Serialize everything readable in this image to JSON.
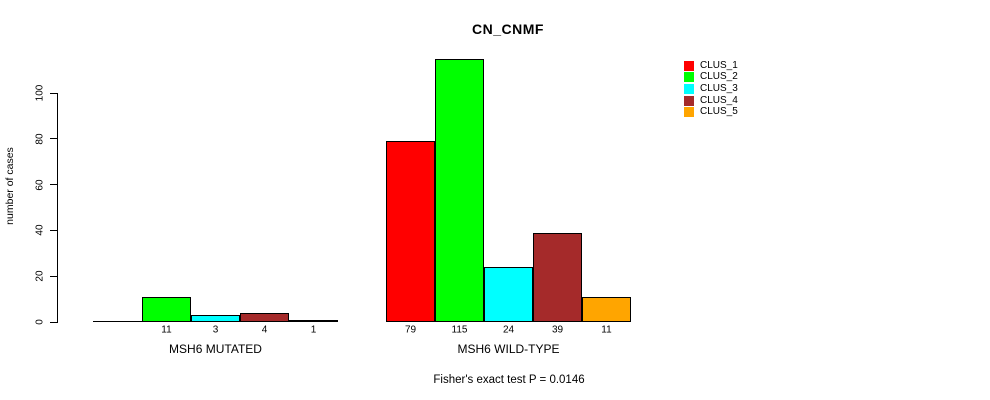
{
  "chart_data": {
    "type": "bar",
    "title": "CN_CNMF",
    "ylabel": "number of cases",
    "xlabel": "",
    "annotation": "Fisher's exact test P = 0.0146",
    "categories": [
      "MSH6 MUTATED",
      "MSH6 WILD-TYPE"
    ],
    "series": [
      {
        "name": "CLUS_1",
        "color": "#ff0000",
        "values": [
          0,
          79
        ],
        "bar_labels": [
          "",
          "79"
        ]
      },
      {
        "name": "CLUS_2",
        "color": "#00ff00",
        "values": [
          11,
          115
        ],
        "bar_labels": [
          "11",
          "115"
        ]
      },
      {
        "name": "CLUS_3",
        "color": "#00ffff",
        "values": [
          3,
          24
        ],
        "bar_labels": [
          "3",
          "24"
        ]
      },
      {
        "name": "CLUS_4",
        "color": "#a52a2a",
        "values": [
          4,
          39
        ],
        "bar_labels": [
          "4",
          "39"
        ]
      },
      {
        "name": "CLUS_5",
        "color": "#ffa500",
        "values": [
          1,
          11
        ],
        "bar_labels": [
          "1",
          "11"
        ]
      }
    ],
    "y_ticks": [
      0,
      20,
      40,
      60,
      80,
      100
    ],
    "ylim": [
      0,
      115
    ],
    "grid": false,
    "legend_position": "top-right"
  }
}
